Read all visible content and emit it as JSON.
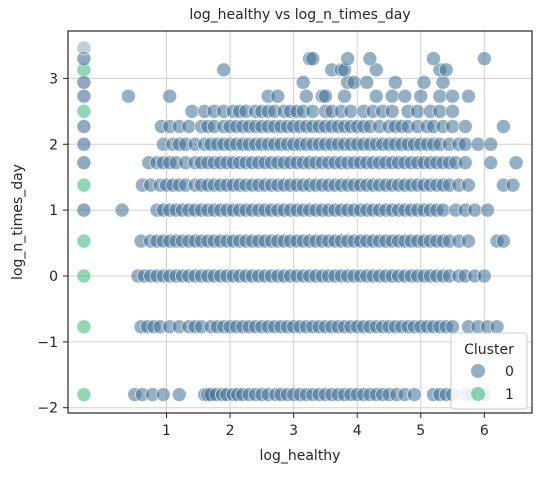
{
  "chart_data": {
    "type": "scatter",
    "title": "log_healthy vs log_n_times_day",
    "xlabel": "log_healthy",
    "ylabel": "log_n_times_day",
    "xlim": [
      -0.55,
      6.75
    ],
    "ylim": [
      -2.08,
      3.72
    ],
    "xticks": [
      1,
      2,
      3,
      4,
      5,
      6
    ],
    "yticks": [
      -2,
      -1,
      0,
      1,
      2,
      3
    ],
    "grid": true,
    "legend": {
      "title": "Cluster",
      "placement": "lower-right",
      "entries": [
        {
          "label": "0",
          "color": "#3e6f95"
        },
        {
          "label": "1",
          "color": "#35b779"
        }
      ]
    },
    "series": [
      {
        "color": "#3e6f95",
        "levels": [
          {
            "y": -1.8,
            "x": [
              0.5,
              0.62,
              0.78,
              0.95,
              1.2,
              1.6,
              1.65,
              1.7,
              1.78,
              1.88,
              1.95,
              2.05,
              2.12,
              2.2,
              2.3,
              2.4,
              2.5,
              2.6,
              2.72,
              2.8,
              2.9,
              3.0,
              3.1,
              3.2,
              3.3,
              3.4,
              3.5,
              3.6,
              3.7,
              3.8,
              3.9,
              4.0,
              4.1,
              4.2,
              4.3,
              4.4,
              4.5,
              4.62,
              4.75,
              4.9,
              5.2,
              5.3,
              5.4,
              5.5,
              5.7,
              5.8,
              5.9,
              6.0
            ]
          },
          {
            "y": -0.77,
            "x": [
              0.6,
              0.7,
              0.8,
              0.9,
              1.05,
              1.2,
              1.35,
              1.45,
              1.55,
              1.7,
              1.8,
              1.9,
              2.0,
              2.1,
              2.2,
              2.3,
              2.4,
              2.5,
              2.6,
              2.7,
              2.8,
              2.9,
              3.0,
              3.1,
              3.2,
              3.3,
              3.4,
              3.5,
              3.6,
              3.7,
              3.8,
              3.9,
              4.0,
              4.1,
              4.2,
              4.3,
              4.4,
              4.5,
              4.6,
              4.7,
              4.8,
              4.9,
              5.0,
              5.1,
              5.2,
              5.3,
              5.4,
              5.5,
              5.75,
              5.9,
              6.05,
              6.2
            ]
          },
          {
            "y": 0,
            "x": [
              0.55,
              0.65,
              0.75,
              0.85,
              0.95,
              1.05,
              1.15,
              1.25,
              1.35,
              1.45,
              1.55,
              1.65,
              1.75,
              1.85,
              1.95,
              2.05,
              2.15,
              2.25,
              2.35,
              2.45,
              2.55,
              2.65,
              2.75,
              2.85,
              2.95,
              3.05,
              3.15,
              3.25,
              3.35,
              3.45,
              3.55,
              3.65,
              3.75,
              3.85,
              3.95,
              4.05,
              4.15,
              4.25,
              4.35,
              4.45,
              4.55,
              4.65,
              4.75,
              4.85,
              4.95,
              5.05,
              5.15,
              5.25,
              5.35,
              5.45,
              5.6,
              5.7,
              5.85,
              6.0
            ]
          },
          {
            "y": 0.53,
            "x": [
              0.6,
              0.75,
              0.85,
              0.95,
              1.05,
              1.15,
              1.25,
              1.35,
              1.45,
              1.55,
              1.65,
              1.75,
              1.85,
              1.95,
              2.05,
              2.15,
              2.25,
              2.35,
              2.45,
              2.55,
              2.65,
              2.75,
              2.85,
              2.95,
              3.05,
              3.15,
              3.25,
              3.35,
              3.45,
              3.55,
              3.65,
              3.75,
              3.85,
              3.95,
              4.05,
              4.15,
              4.25,
              4.35,
              4.45,
              4.55,
              4.65,
              4.75,
              4.85,
              4.95,
              5.05,
              5.15,
              5.25,
              5.35,
              5.45,
              5.6,
              5.75,
              6.2,
              6.3
            ]
          },
          {
            "y": 1.0,
            "x": [
              0.3,
              0.85,
              0.95,
              1.05,
              1.15,
              1.25,
              1.35,
              1.45,
              1.55,
              1.65,
              1.75,
              1.85,
              1.95,
              2.05,
              2.15,
              2.25,
              2.35,
              2.45,
              2.55,
              2.65,
              2.75,
              2.85,
              2.95,
              3.05,
              3.15,
              3.25,
              3.35,
              3.45,
              3.55,
              3.65,
              3.75,
              3.85,
              3.95,
              4.05,
              4.15,
              4.25,
              4.35,
              4.45,
              4.55,
              4.65,
              4.75,
              4.85,
              4.95,
              5.05,
              5.15,
              5.25,
              5.35,
              5.55,
              5.7,
              5.85,
              6.05
            ]
          },
          {
            "y": 1.38,
            "x": [
              0.62,
              0.75,
              0.9,
              1.0,
              1.1,
              1.2,
              1.3,
              1.45,
              1.55,
              1.65,
              1.75,
              1.85,
              1.95,
              2.05,
              2.15,
              2.25,
              2.35,
              2.45,
              2.55,
              2.65,
              2.75,
              2.85,
              2.95,
              3.05,
              3.15,
              3.25,
              3.35,
              3.45,
              3.55,
              3.65,
              3.75,
              3.85,
              3.95,
              4.05,
              4.15,
              4.25,
              4.35,
              4.45,
              4.55,
              4.65,
              4.75,
              4.85,
              4.95,
              5.05,
              5.15,
              5.25,
              5.35,
              5.45,
              5.6,
              5.75,
              6.3,
              6.45
            ]
          },
          {
            "y": 1.72,
            "x": [
              0.72,
              0.85,
              0.95,
              1.05,
              1.15,
              1.3,
              1.45,
              1.55,
              1.65,
              1.75,
              1.85,
              1.95,
              2.05,
              2.15,
              2.25,
              2.35,
              2.45,
              2.55,
              2.65,
              2.75,
              2.85,
              2.95,
              3.05,
              3.15,
              3.25,
              3.35,
              3.45,
              3.55,
              3.65,
              3.75,
              3.85,
              3.95,
              4.05,
              4.15,
              4.25,
              4.35,
              4.45,
              4.55,
              4.65,
              4.75,
              4.85,
              4.95,
              5.05,
              5.15,
              5.25,
              5.35,
              5.45,
              5.55,
              5.7,
              6.1,
              6.5
            ]
          },
          {
            "y": 2.0,
            "x": [
              0.95,
              1.1,
              1.2,
              1.3,
              1.45,
              1.6,
              1.7,
              1.8,
              1.9,
              2.0,
              2.1,
              2.2,
              2.3,
              2.4,
              2.5,
              2.6,
              2.7,
              2.8,
              2.9,
              3.0,
              3.1,
              3.2,
              3.3,
              3.4,
              3.5,
              3.6,
              3.7,
              3.8,
              3.9,
              4.0,
              4.1,
              4.2,
              4.3,
              4.4,
              4.5,
              4.6,
              4.7,
              4.8,
              4.9,
              5.0,
              5.1,
              5.2,
              5.3,
              5.45,
              5.6,
              5.7,
              5.9,
              6.1
            ]
          },
          {
            "y": 2.27,
            "x": [
              0.92,
              1.05,
              1.2,
              1.35,
              1.55,
              1.65,
              1.75,
              1.9,
              2.0,
              2.1,
              2.2,
              2.3,
              2.4,
              2.5,
              2.6,
              2.7,
              2.8,
              2.9,
              3.0,
              3.1,
              3.2,
              3.3,
              3.4,
              3.5,
              3.6,
              3.7,
              3.8,
              3.9,
              4.0,
              4.1,
              4.2,
              4.35,
              4.5,
              4.6,
              4.7,
              4.8,
              4.95,
              5.1,
              5.2,
              5.35,
              5.5,
              5.7,
              6.3
            ]
          },
          {
            "y": 2.5,
            "x": [
              1.4,
              1.6,
              1.75,
              1.9,
              2.05,
              2.15,
              2.25,
              2.4,
              2.5,
              2.6,
              2.7,
              2.85,
              2.95,
              3.05,
              3.15,
              3.3,
              3.5,
              3.6,
              3.75,
              3.9,
              4.1,
              4.25,
              4.4,
              4.55,
              4.8,
              4.95,
              5.15,
              5.3,
              5.5
            ]
          },
          {
            "y": 2.73,
            "x": [
              0.4,
              1.05,
              2.6,
              2.75,
              3.2,
              3.45,
              3.5,
              3.8,
              4.3,
              4.55,
              4.75,
              5.0,
              5.3,
              5.5,
              5.75
            ]
          },
          {
            "y": 2.94,
            "x": [
              3.15,
              3.85,
              3.95,
              4.15,
              4.6,
              5.05,
              5.35
            ]
          },
          {
            "y": 3.13,
            "x": [
              1.9,
              3.6,
              3.75,
              3.8,
              4.3,
              5.3,
              5.4
            ]
          },
          {
            "y": 3.3,
            "x": [
              3.25,
              3.3,
              3.85,
              4.2,
              5.2,
              6.0
            ]
          }
        ]
      },
      {
        "color": "#35b779",
        "levels": [
          {
            "y": -1.8,
            "x": [
              -0.3
            ]
          },
          {
            "y": -0.77,
            "x": [
              -0.3
            ]
          },
          {
            "y": 0,
            "x": [
              -0.3
            ]
          },
          {
            "y": 0.53,
            "x": [
              -0.3
            ]
          },
          {
            "y": 1.38,
            "x": [
              -0.3
            ]
          },
          {
            "y": 2.5,
            "x": [
              -0.3
            ]
          },
          {
            "y": 3.13,
            "x": [
              -0.3
            ]
          }
        ]
      },
      {
        "color": "#33638d",
        "levels": [
          {
            "y": 1.0,
            "x": [
              -0.3
            ]
          },
          {
            "y": 1.72,
            "x": [
              -0.3
            ]
          },
          {
            "y": 2.0,
            "x": [
              -0.3
            ]
          },
          {
            "y": 2.27,
            "x": [
              -0.3
            ]
          },
          {
            "y": 2.73,
            "x": [
              -0.3
            ]
          },
          {
            "y": 2.94,
            "x": [
              -0.3
            ]
          },
          {
            "y": 3.3,
            "x": [
              -0.3
            ]
          }
        ]
      },
      {
        "color": "#8ea7bd",
        "levels": [
          {
            "y": 3.46,
            "x": [
              -0.3
            ]
          }
        ]
      }
    ]
  }
}
